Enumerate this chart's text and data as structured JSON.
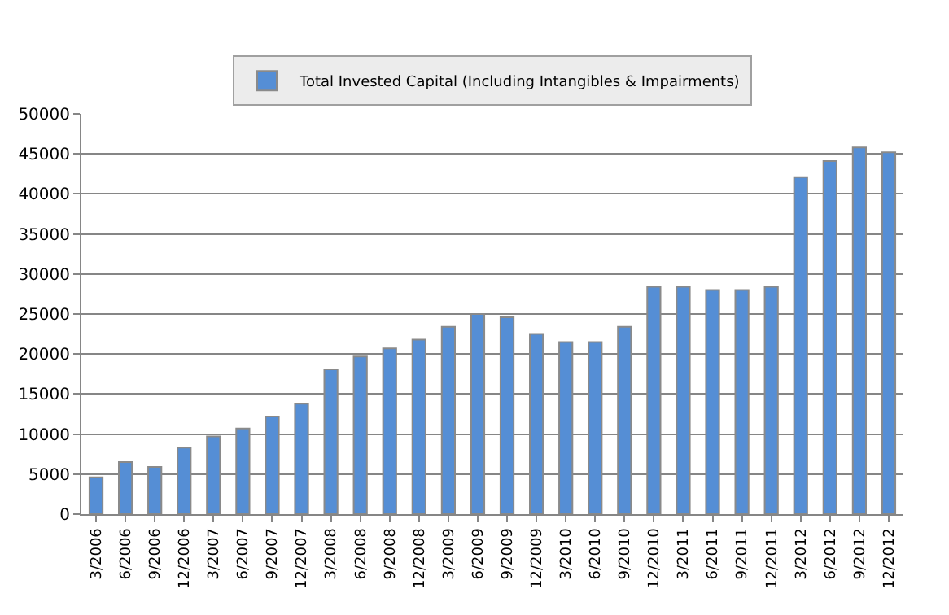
{
  "chart_data": {
    "type": "bar",
    "categories": [
      "3/2006",
      "6/2006",
      "9/2006",
      "12/2006",
      "3/2007",
      "6/2007",
      "9/2007",
      "12/2007",
      "3/2008",
      "6/2008",
      "9/2008",
      "12/2008",
      "3/2009",
      "6/2009",
      "9/2009",
      "12/2009",
      "3/2010",
      "6/2010",
      "9/2010",
      "12/2010",
      "3/2011",
      "6/2011",
      "9/2011",
      "12/2011",
      "3/2012",
      "6/2012",
      "9/2012",
      "12/2012"
    ],
    "series": [
      {
        "name": "Total Invested Capital (Including Intangibles & Impairments)",
        "color": "#558ed5",
        "values": [
          4600,
          6500,
          5900,
          8300,
          9700,
          10700,
          12200,
          13800,
          18100,
          19700,
          20700,
          21800,
          23400,
          25000,
          24600,
          22500,
          21500,
          21500,
          23400,
          28400,
          28400,
          28000,
          28000,
          28400,
          42100,
          44100,
          45800,
          45200
        ]
      }
    ],
    "ylim": [
      0,
      50000
    ],
    "yticks": [
      0,
      5000,
      10000,
      15000,
      20000,
      25000,
      30000,
      35000,
      40000,
      45000,
      50000
    ],
    "grid": "y",
    "legend": "top"
  }
}
